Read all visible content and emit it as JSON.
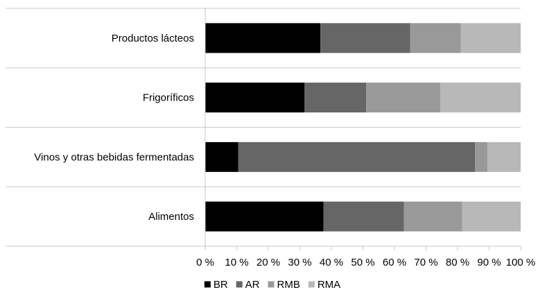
{
  "chart_data": {
    "type": "bar",
    "orientation": "horizontal",
    "stacked": "percent",
    "categories": [
      "Productos lácteos",
      "Frigoríficos",
      "Vinos y otras bebidas fermentadas",
      "Alimentos"
    ],
    "series": [
      {
        "name": "BR",
        "color": "#000000",
        "values": [
          36.5,
          31.5,
          10.5,
          37.5
        ]
      },
      {
        "name": "AR",
        "color": "#666666",
        "values": [
          28.5,
          19.5,
          75.0,
          25.5
        ]
      },
      {
        "name": "RMB",
        "color": "#999999",
        "values": [
          16.0,
          23.5,
          4.0,
          18.5
        ]
      },
      {
        "name": "RMA",
        "color": "#b8b8b8",
        "values": [
          19.0,
          25.5,
          10.5,
          18.5
        ]
      }
    ],
    "xlim": [
      0,
      100
    ],
    "xticks": [
      "0 %",
      "10 %",
      "20 %",
      "30 %",
      "40 %",
      "50 %",
      "60 %",
      "70 %",
      "80 %",
      "90 %",
      "100 %"
    ],
    "title": "",
    "xlabel": "",
    "ylabel": "",
    "grid": "category separators",
    "legend_position": "bottom"
  }
}
